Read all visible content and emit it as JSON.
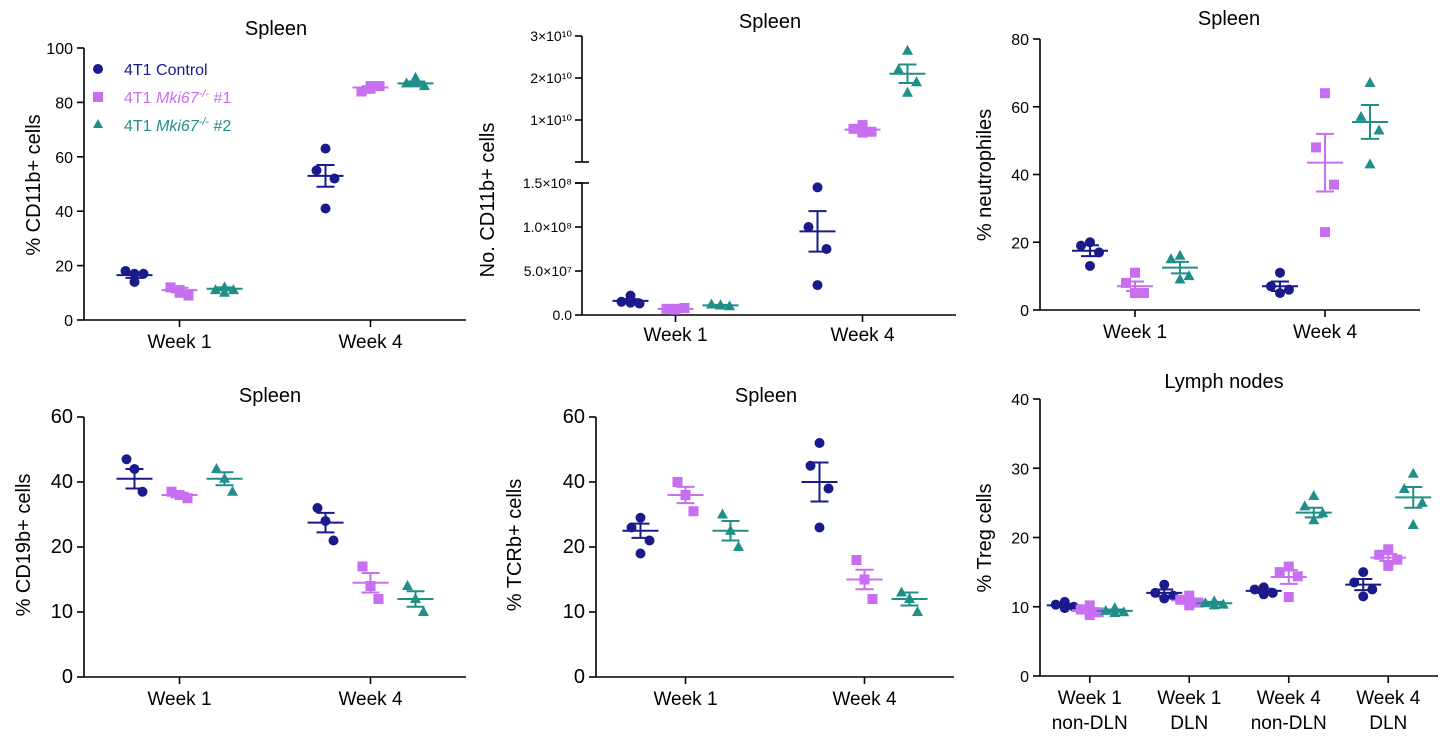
{
  "colors": {
    "control": "#1a1a8c",
    "mki1": "#c86ef0",
    "mki2": "#1f8f88"
  },
  "legend": {
    "control": "4T1 Control",
    "mki1_prefix": "4T1 ",
    "mki1_gene": "Mki67",
    "mki1_sup": "-/-",
    "mki1_suffix": " #1",
    "mki2_prefix": "4T1 ",
    "mki2_gene": "Mki67",
    "mki2_sup": "-/-",
    "mki2_suffix": " #2"
  },
  "chart_data": [
    {
      "type": "scatter",
      "title": "Spleen",
      "ylabel": "% CD11b+ cells",
      "ylim": [
        0,
        100
      ],
      "yticks": [
        0,
        20,
        40,
        60,
        80,
        100
      ],
      "categories": [
        "Week 1",
        "Week 4"
      ],
      "series": [
        {
          "name": "4T1 Control",
          "marker": "circle",
          "points": [
            [
              17,
              18,
              17,
              14
            ],
            [
              63,
              55,
              52,
              41
            ]
          ],
          "mean": [
            16.5,
            53
          ],
          "sem": [
            1,
            4
          ]
        },
        {
          "name": "4T1 Mki67-/- #1",
          "marker": "square",
          "points": [
            [
              11,
              12,
              9,
              10
            ],
            [
              86,
              84,
              86,
              85
            ]
          ],
          "mean": [
            11,
            85.5
          ],
          "sem": [
            0.8,
            0.5
          ]
        },
        {
          "name": "4T1 Mki67-/- #2",
          "marker": "triangle",
          "points": [
            [
              12,
              11,
              11,
              10
            ],
            [
              89,
              87,
              86,
              87
            ]
          ],
          "mean": [
            11.5,
            87
          ],
          "sem": [
            0.5,
            0.7
          ]
        }
      ]
    },
    {
      "type": "scatter",
      "title": "Spleen",
      "ylabel": "No. CD11b+ cells",
      "ylim": [
        0,
        30000000000.0
      ],
      "axis_break": true,
      "yticks_lower": [
        "0.0",
        "5.0×10⁷",
        "1.0×10⁸",
        "1.5×10⁸"
      ],
      "yticks_upper": [
        "1×10¹⁰",
        "2×10¹⁰",
        "3×10¹⁰"
      ],
      "categories": [
        "Week 1",
        "Week 4"
      ],
      "series": [
        {
          "name": "4T1 Control",
          "marker": "circle",
          "points": [
            [
              22000000.0,
              15000000.0,
              13000000.0,
              14000000.0
            ],
            [
              145000000.0,
              100000000.0,
              75000000.0,
              34000000.0
            ]
          ],
          "mean": [
            16000000.0,
            95000000.0
          ],
          "sem": [
            2000000.0,
            23000000.0
          ]
        },
        {
          "name": "4T1 Mki67-/- #1",
          "marker": "square",
          "points": [
            [
              6000000.0,
              7000000.0,
              8000000.0,
              7000000.0
            ],
            [
              8800000000.0,
              7900000000.0,
              7200000000.0,
              7000000000.0
            ]
          ],
          "mean": [
            7000000.0,
            7700000000.0
          ],
          "sem": [
            500000.0,
            400000000.0
          ]
        },
        {
          "name": "4T1 Mki67-/- #2",
          "marker": "triangle",
          "points": [
            [
              11000000.0,
              12000000.0,
              10000000.0,
              11000000.0
            ],
            [
              26500000000.0,
              22000000000.0,
              19000000000.0,
              16500000000.0
            ]
          ],
          "mean": [
            11000000.0,
            21000000000.0
          ],
          "sem": [
            500000.0,
            2200000000.0
          ]
        }
      ]
    },
    {
      "type": "scatter",
      "title": "Spleen",
      "ylabel": "% neutrophiles",
      "ylim": [
        0,
        80
      ],
      "yticks": [
        0,
        20,
        40,
        60,
        80
      ],
      "categories": [
        "Week 1",
        "Week 4"
      ],
      "series": [
        {
          "name": "4T1 Control",
          "marker": "circle",
          "points": [
            [
              20,
              19,
              17,
              13
            ],
            [
              11,
              7,
              6,
              5
            ]
          ],
          "mean": [
            17.5,
            7
          ],
          "sem": [
            1.6,
            1.4
          ]
        },
        {
          "name": "4T1 Mki67-/- #1",
          "marker": "square",
          "points": [
            [
              11,
              8,
              5,
              5
            ],
            [
              64,
              48,
              37,
              23
            ]
          ],
          "mean": [
            7,
            43.5
          ],
          "sem": [
            1.4,
            8.5
          ]
        },
        {
          "name": "4T1 Mki67-/- #2",
          "marker": "triangle",
          "points": [
            [
              16,
              15,
              10,
              9
            ],
            [
              67,
              57,
              53,
              43
            ]
          ],
          "mean": [
            12.5,
            55.5
          ],
          "sem": [
            1.7,
            5
          ]
        }
      ]
    },
    {
      "type": "scatter",
      "title": "Spleen",
      "ylabel": "% CD19b+ cells",
      "ylim": [
        0,
        60
      ],
      "yticks": [
        0,
        10,
        20,
        40,
        60
      ],
      "tick_note": "axis labels as printed; spacing linear in position",
      "categories": [
        "Week 1",
        "Week 4"
      ],
      "series": [
        {
          "name": "4T1 Control",
          "marker": "circle",
          "points": [
            [
              47,
              44,
              37
            ],
            [
              32,
              28,
              22
            ]
          ],
          "mean": [
            41,
            27.5
          ],
          "sem": [
            3,
            3
          ]
        },
        {
          "name": "4T1 Mki67-/- #1",
          "marker": "square",
          "points": [
            [
              37,
              36,
              35
            ],
            [
              17,
              14,
              12
            ]
          ],
          "mean": [
            36,
            14.5
          ],
          "sem": [
            0.7,
            1.5
          ]
        },
        {
          "name": "4T1 Mki67-/- #2",
          "marker": "triangle",
          "points": [
            [
              44,
              41,
              37
            ],
            [
              14,
              12,
              10
            ]
          ],
          "mean": [
            41,
            12
          ],
          "sem": [
            2,
            1.2
          ]
        }
      ]
    },
    {
      "type": "scatter",
      "title": "Spleen",
      "ylabel": "% TCRb+ cells",
      "ylim": [
        0,
        60
      ],
      "yticks": [
        0,
        10,
        20,
        40,
        60
      ],
      "categories": [
        "Week 1",
        "Week 4"
      ],
      "series": [
        {
          "name": "4T1 Control",
          "marker": "circle",
          "points": [
            [
              29,
              26,
              22,
              19
            ],
            [
              52,
              45,
              38,
              26
            ]
          ],
          "mean": [
            25,
            40
          ],
          "sem": [
            2.2,
            6
          ]
        },
        {
          "name": "4T1 Mki67-/- #1",
          "marker": "square",
          "points": [
            [
              40,
              36,
              31
            ],
            [
              18,
              15,
              12
            ]
          ],
          "mean": [
            36,
            15
          ],
          "sem": [
            2.5,
            1.5
          ]
        },
        {
          "name": "4T1 Mki67-/- #2",
          "marker": "triangle",
          "points": [
            [
              30,
              25,
              20
            ],
            [
              13,
              12,
              10
            ]
          ],
          "mean": [
            25,
            12
          ],
          "sem": [
            3,
            1
          ]
        }
      ]
    },
    {
      "type": "scatter",
      "title": "Lymph nodes",
      "ylabel": "% Treg cells",
      "ylim": [
        0,
        40
      ],
      "yticks": [
        0,
        10,
        20,
        30,
        40
      ],
      "categories": [
        [
          "Week 1",
          "non-DLN"
        ],
        [
          "Week 1",
          "DLN"
        ],
        [
          "Week 4",
          "non-DLN"
        ],
        [
          "Week 4",
          "DLN"
        ]
      ],
      "series": [
        {
          "name": "4T1 Control",
          "marker": "circle",
          "points": [
            [
              10.7,
              10.3,
              10,
              9.8
            ],
            [
              13.2,
              12,
              11.6,
              11.2
            ],
            [
              12.8,
              12.5,
              12,
              11.8
            ],
            [
              15,
              13.5,
              12.5,
              11.5
            ]
          ],
          "mean": [
            10.2,
            12,
            12.3,
            13.2
          ],
          "sem": [
            0.2,
            0.5,
            0.3,
            0.8
          ]
        },
        {
          "name": "4T1 Mki67-/- #1",
          "marker": "square",
          "points": [
            [
              10.2,
              9.6,
              9.2,
              8.8
            ],
            [
              11.6,
              11,
              10.6,
              10.2
            ],
            [
              15.8,
              15,
              14.4,
              11.4
            ],
            [
              18.3,
              17.5,
              16.8,
              15.9
            ]
          ],
          "mean": [
            9.5,
            10.9,
            14.3,
            17.1
          ],
          "sem": [
            0.3,
            0.3,
            1.0,
            0.5
          ]
        },
        {
          "name": "4T1 Mki67-/- #2",
          "marker": "triangle",
          "points": [
            [
              9.8,
              9.4,
              9.2,
              9.1
            ],
            [
              10.8,
              10.5,
              10.3,
              10.2
            ],
            [
              26,
              24.5,
              23.5,
              22.5
            ],
            [
              29.2,
              27,
              25,
              21.8
            ]
          ],
          "mean": [
            9.4,
            10.5,
            23.6,
            25.8
          ],
          "sem": [
            0.2,
            0.2,
            0.7,
            1.5
          ]
        }
      ]
    }
  ]
}
